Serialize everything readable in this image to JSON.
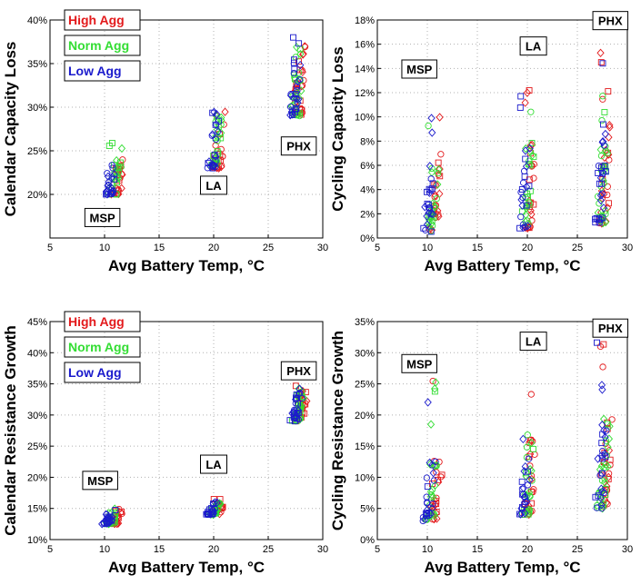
{
  "colors": {
    "high": "#e31a1c",
    "norm": "#33dd33",
    "low": "#1a1acc",
    "grid": "#b0b0b0"
  },
  "chart_data": [
    {
      "id": "calendar-capacity-loss",
      "type": "scatter",
      "xlabel": "Avg Battery Temp, °C",
      "ylabel": "Calendar Capacity Loss",
      "xlim": [
        5,
        30
      ],
      "ylim": [
        0.15,
        0.4
      ],
      "x_ticks": [
        {
          "v": 5,
          "l": "5"
        },
        {
          "v": 10,
          "l": "10"
        },
        {
          "v": 15,
          "l": "15"
        },
        {
          "v": 20,
          "l": "20"
        },
        {
          "v": 25,
          "l": "25"
        },
        {
          "v": 30,
          "l": "30"
        }
      ],
      "y_ticks": [
        {
          "v": 0.2,
          "l": "20%"
        },
        {
          "v": 0.25,
          "l": "25%"
        },
        {
          "v": 0.3,
          "l": "30%"
        },
        {
          "v": 0.35,
          "l": "35%"
        },
        {
          "v": 0.4,
          "l": "40%"
        }
      ],
      "legend": [
        "High Agg",
        "Norm Agg",
        "Low Agg"
      ],
      "cities": [
        {
          "text": "MSP",
          "x": 9.8,
          "y": 0.1735
        },
        {
          "text": "LA",
          "x": 20.0,
          "y": 0.2105
        },
        {
          "text": "PHX",
          "x": 27.8,
          "y": 0.2555
        }
      ],
      "clusters": [
        {
          "city": "MSP",
          "cx": 10.2,
          "y_min": 0.2,
          "y_max": 0.24,
          "n": 70,
          "agg_spread": 0.6,
          "dx": 1.0,
          "tail": 0.26
        },
        {
          "city": "LA",
          "cx": 19.6,
          "y_min": 0.23,
          "y_max": 0.29,
          "n": 70,
          "agg_spread": 0.5,
          "dx": 0.9,
          "tail": 0.3
        },
        {
          "city": "PHX",
          "cx": 27.1,
          "y_min": 0.29,
          "y_max": 0.37,
          "n": 80,
          "agg_spread": 0.4,
          "dx": 0.9,
          "tail": 0.385
        }
      ],
      "series": [
        {
          "name": "High Agg",
          "color_key": "high",
          "x_offset": 1.1
        },
        {
          "name": "Norm Agg",
          "color_key": "norm",
          "x_offset": 0.5
        },
        {
          "name": "Low Agg",
          "color_key": "low",
          "x_offset": 0.0
        }
      ]
    },
    {
      "id": "cycling-capacity-loss",
      "type": "scatter",
      "xlabel": "Avg Battery Temp, °C",
      "ylabel": "Cycling Capacity Loss",
      "xlim": [
        5,
        30
      ],
      "ylim": [
        0,
        0.18
      ],
      "x_ticks": [
        {
          "v": 5,
          "l": "5"
        },
        {
          "v": 10,
          "l": "10"
        },
        {
          "v": 15,
          "l": "15"
        },
        {
          "v": 20,
          "l": "20"
        },
        {
          "v": 25,
          "l": "25"
        },
        {
          "v": 30,
          "l": "30"
        }
      ],
      "y_ticks": [
        {
          "v": 0,
          "l": "0%"
        },
        {
          "v": 0.02,
          "l": "2%"
        },
        {
          "v": 0.04,
          "l": "4%"
        },
        {
          "v": 0.06,
          "l": "6%"
        },
        {
          "v": 0.08,
          "l": "8%"
        },
        {
          "v": 0.1,
          "l": "10%"
        },
        {
          "v": 0.12,
          "l": "12%"
        },
        {
          "v": 0.14,
          "l": "14%"
        },
        {
          "v": 0.16,
          "l": "16%"
        },
        {
          "v": 0.18,
          "l": "18%"
        }
      ],
      "legend": [],
      "cities": [
        {
          "text": "MSP",
          "x": 9.2,
          "y": 0.1395
        },
        {
          "text": "LA",
          "x": 20.6,
          "y": 0.1585
        },
        {
          "text": "PHX",
          "x": 28.3,
          "y": 0.1795
        }
      ],
      "clusters": [
        {
          "city": "MSP",
          "cx": 9.8,
          "y_min": 0.005,
          "y_max": 0.06,
          "n": 70,
          "agg_spread": 0.6,
          "dx": 1.0,
          "tail": 0.115
        },
        {
          "city": "LA",
          "cx": 19.4,
          "y_min": 0.008,
          "y_max": 0.08,
          "n": 70,
          "agg_spread": 0.5,
          "dx": 1.0,
          "tail": 0.128
        },
        {
          "city": "PHX",
          "cx": 27.0,
          "y_min": 0.012,
          "y_max": 0.1,
          "n": 80,
          "agg_spread": 0.4,
          "dx": 1.0,
          "tail": 0.16
        }
      ],
      "series": [
        {
          "name": "High Agg",
          "color_key": "high",
          "x_offset": 1.1
        },
        {
          "name": "Norm Agg",
          "color_key": "norm",
          "x_offset": 0.5
        },
        {
          "name": "Low Agg",
          "color_key": "low",
          "x_offset": 0.0
        }
      ]
    },
    {
      "id": "calendar-resistance-growth",
      "type": "scatter",
      "xlabel": "Avg Battery Temp, °C",
      "ylabel": "Calendar Resistance Growth",
      "xlim": [
        5,
        30
      ],
      "ylim": [
        0.1,
        0.45
      ],
      "x_ticks": [
        {
          "v": 5,
          "l": "5"
        },
        {
          "v": 10,
          "l": "10"
        },
        {
          "v": 15,
          "l": "15"
        },
        {
          "v": 20,
          "l": "20"
        },
        {
          "v": 25,
          "l": "25"
        },
        {
          "v": 30,
          "l": "30"
        }
      ],
      "y_ticks": [
        {
          "v": 0.1,
          "l": "10%"
        },
        {
          "v": 0.15,
          "l": "15%"
        },
        {
          "v": 0.2,
          "l": "20%"
        },
        {
          "v": 0.25,
          "l": "25%"
        },
        {
          "v": 0.3,
          "l": "30%"
        },
        {
          "v": 0.35,
          "l": "35%"
        },
        {
          "v": 0.4,
          "l": "40%"
        },
        {
          "v": 0.45,
          "l": "45%"
        }
      ],
      "legend": [
        "High Agg",
        "Norm Agg",
        "Low Agg"
      ],
      "cities": [
        {
          "text": "MSP",
          "x": 9.6,
          "y": 0.195
        },
        {
          "text": "LA",
          "x": 20.0,
          "y": 0.221
        },
        {
          "text": "PHX",
          "x": 27.8,
          "y": 0.371
        }
      ],
      "clusters": [
        {
          "city": "MSP",
          "cx": 10.0,
          "y_min": 0.125,
          "y_max": 0.145,
          "n": 70,
          "agg_spread": 0.6,
          "dx": 0.9,
          "tail": 0.15
        },
        {
          "city": "LA",
          "cx": 19.5,
          "y_min": 0.14,
          "y_max": 0.16,
          "n": 70,
          "agg_spread": 0.5,
          "dx": 0.8,
          "tail": 0.17
        },
        {
          "city": "PHX",
          "cx": 27.2,
          "y_min": 0.29,
          "y_max": 0.34,
          "n": 80,
          "agg_spread": 0.4,
          "dx": 0.9,
          "tail": 0.35
        }
      ],
      "series": [
        {
          "name": "High Agg",
          "color_key": "high",
          "x_offset": 1.1
        },
        {
          "name": "Norm Agg",
          "color_key": "norm",
          "x_offset": 0.5
        },
        {
          "name": "Low Agg",
          "color_key": "low",
          "x_offset": 0.0
        }
      ]
    },
    {
      "id": "cycling-resistance-growth",
      "type": "scatter",
      "xlabel": "Avg Battery Temp, °C",
      "ylabel": "Cycling Resistance Growth",
      "xlim": [
        5,
        30
      ],
      "ylim": [
        0,
        0.35
      ],
      "x_ticks": [
        {
          "v": 5,
          "l": "5"
        },
        {
          "v": 10,
          "l": "10"
        },
        {
          "v": 15,
          "l": "15"
        },
        {
          "v": 20,
          "l": "20"
        },
        {
          "v": 25,
          "l": "25"
        },
        {
          "v": 30,
          "l": "30"
        }
      ],
      "y_ticks": [
        {
          "v": 0,
          "l": "0%"
        },
        {
          "v": 0.05,
          "l": "5%"
        },
        {
          "v": 0.1,
          "l": "10%"
        },
        {
          "v": 0.15,
          "l": "15%"
        },
        {
          "v": 0.2,
          "l": "20%"
        },
        {
          "v": 0.25,
          "l": "25%"
        },
        {
          "v": 0.3,
          "l": "30%"
        },
        {
          "v": 0.35,
          "l": "35%"
        }
      ],
      "legend": [],
      "cities": [
        {
          "text": "MSP",
          "x": 9.2,
          "y": 0.2825
        },
        {
          "text": "LA",
          "x": 20.6,
          "y": 0.3185
        },
        {
          "text": "PHX",
          "x": 28.3,
          "y": 0.3395
        }
      ],
      "clusters": [
        {
          "city": "MSP",
          "cx": 9.8,
          "y_min": 0.03,
          "y_max": 0.13,
          "n": 70,
          "agg_spread": 0.6,
          "dx": 1.0,
          "tail": 0.26
        },
        {
          "city": "LA",
          "cx": 19.4,
          "y_min": 0.04,
          "y_max": 0.16,
          "n": 70,
          "agg_spread": 0.5,
          "dx": 1.0,
          "tail": 0.29
        },
        {
          "city": "PHX",
          "cx": 27.0,
          "y_min": 0.05,
          "y_max": 0.2,
          "n": 80,
          "agg_spread": 0.4,
          "dx": 1.0,
          "tail": 0.32
        }
      ],
      "series": [
        {
          "name": "High Agg",
          "color_key": "high",
          "x_offset": 1.1
        },
        {
          "name": "Norm Agg",
          "color_key": "norm",
          "x_offset": 0.5
        },
        {
          "name": "Low Agg",
          "color_key": "low",
          "x_offset": 0.0
        }
      ]
    }
  ]
}
